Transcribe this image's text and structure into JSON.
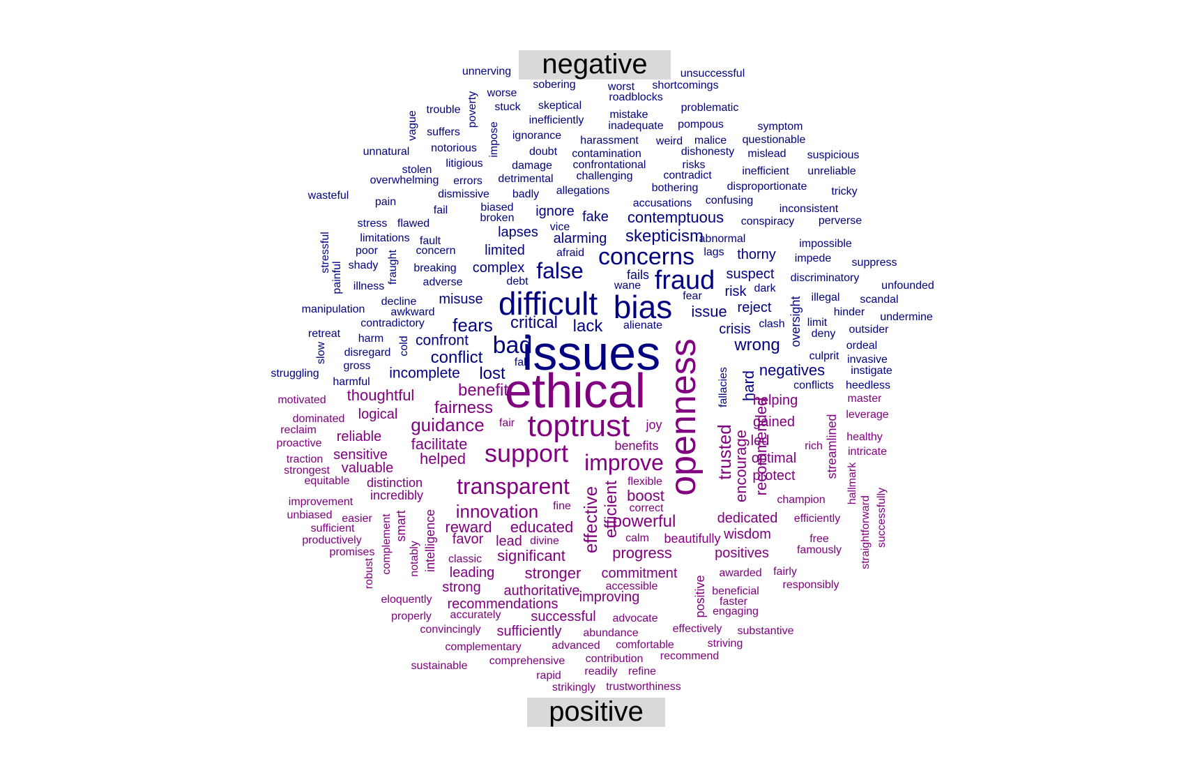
{
  "labels": {
    "negative": "negative",
    "positive": "positive"
  },
  "colors": {
    "negative": "#000080",
    "positive": "#800080"
  },
  "negative_words": [
    [
      "issues",
      70,
      848,
      506,
      0
    ],
    [
      "difficult",
      46,
      786,
      435,
      0
    ],
    [
      "bias",
      46,
      922,
      440,
      0
    ],
    [
      "fraud",
      38,
      982,
      402,
      0
    ],
    [
      "concerns",
      34,
      927,
      368,
      0
    ],
    [
      "false",
      32,
      803,
      388,
      0
    ],
    [
      "bad",
      34,
      735,
      495,
      0
    ],
    [
      "skepticism",
      24,
      953,
      339,
      0
    ],
    [
      "contemptuous",
      22,
      969,
      312,
      0
    ],
    [
      "fears",
      26,
      678,
      466,
      0
    ],
    [
      "critical",
      24,
      766,
      463,
      0
    ],
    [
      "lack",
      24,
      843,
      468,
      0
    ],
    [
      "conflict",
      24,
      655,
      513,
      0
    ],
    [
      "lost",
      24,
      706,
      536,
      0
    ],
    [
      "incomplete",
      21,
      609,
      535,
      0
    ],
    [
      "confront",
      21,
      634,
      488,
      0
    ],
    [
      "wrong",
      24,
      1086,
      495,
      0
    ],
    [
      "negatives",
      22,
      1136,
      531,
      0
    ],
    [
      "issue",
      22,
      1017,
      447,
      0
    ],
    [
      "crisis",
      20,
      1054,
      472,
      0
    ],
    [
      "reject",
      20,
      1082,
      441,
      0
    ],
    [
      "risk",
      20,
      1055,
      418,
      0
    ],
    [
      "suspect",
      20,
      1076,
      393,
      0
    ],
    [
      "thorny",
      20,
      1085,
      365,
      0
    ],
    [
      "limited",
      20,
      724,
      359,
      0
    ],
    [
      "complex",
      20,
      715,
      384,
      0
    ],
    [
      "misuse",
      20,
      661,
      429,
      0
    ],
    [
      "alarming",
      20,
      832,
      342,
      0
    ],
    [
      "lapses",
      20,
      743,
      333,
      0
    ],
    [
      "fake",
      20,
      854,
      311,
      0
    ],
    [
      "ignore",
      20,
      796,
      303,
      0
    ],
    [
      "fails",
      18,
      915,
      394,
      0
    ],
    [
      "wane",
      16,
      900,
      410,
      0
    ],
    [
      "fear",
      16,
      993,
      425,
      0
    ],
    [
      "alienate",
      16,
      922,
      467,
      0
    ],
    [
      "lags",
      16,
      1024,
      362,
      0
    ],
    [
      "abnormal",
      16,
      1036,
      343,
      0
    ],
    [
      "afraid",
      16,
      818,
      363,
      0
    ],
    [
      "vice",
      16,
      803,
      326,
      0
    ],
    [
      "debt",
      16,
      742,
      404,
      0
    ],
    [
      "adverse",
      16,
      635,
      405,
      0
    ],
    [
      "breaking",
      16,
      624,
      385,
      0
    ],
    [
      "concern",
      16,
      625,
      360,
      0
    ],
    [
      "fault",
      16,
      617,
      346,
      0
    ],
    [
      "flawed",
      16,
      593,
      321,
      0
    ],
    [
      "stress",
      16,
      534,
      321,
      0
    ],
    [
      "fail",
      16,
      632,
      302,
      0
    ],
    [
      "broken",
      16,
      713,
      313,
      0
    ],
    [
      "biased",
      16,
      713,
      298,
      0
    ],
    [
      "badly",
      16,
      754,
      279,
      0
    ],
    [
      "dismissive",
      16,
      665,
      279,
      0
    ],
    [
      "pain",
      16,
      553,
      290,
      0
    ],
    [
      "wasteful",
      16,
      471,
      281,
      0
    ],
    [
      "overwhelming",
      16,
      580,
      259,
      0
    ],
    [
      "errors",
      16,
      671,
      260,
      0
    ],
    [
      "detrimental",
      16,
      754,
      257,
      0
    ],
    [
      "allegations",
      16,
      836,
      274,
      0
    ],
    [
      "challenging",
      16,
      867,
      253,
      0
    ],
    [
      "confrontational",
      16,
      874,
      237,
      0
    ],
    [
      "risks",
      16,
      995,
      237,
      0
    ],
    [
      "contradict",
      16,
      986,
      252,
      0
    ],
    [
      "bothering",
      16,
      968,
      270,
      0
    ],
    [
      "disproportionate",
      16,
      1100,
      268,
      0
    ],
    [
      "accusations",
      16,
      950,
      292,
      0
    ],
    [
      "confusing",
      16,
      1046,
      288,
      0
    ],
    [
      "inefficient",
      16,
      1098,
      246,
      0
    ],
    [
      "unreliable",
      16,
      1193,
      246,
      0
    ],
    [
      "tricky",
      16,
      1211,
      275,
      0
    ],
    [
      "inconsistent",
      16,
      1160,
      300,
      0
    ],
    [
      "conspiracy",
      16,
      1101,
      318,
      0
    ],
    [
      "perverse",
      16,
      1205,
      317,
      0
    ],
    [
      "impossible",
      16,
      1184,
      350,
      0
    ],
    [
      "impede",
      16,
      1166,
      371,
      0
    ],
    [
      "suppress",
      16,
      1254,
      377,
      0
    ],
    [
      "discriminatory",
      16,
      1183,
      399,
      0
    ],
    [
      "unfounded",
      16,
      1302,
      410,
      0
    ],
    [
      "illegal",
      16,
      1184,
      427,
      0
    ],
    [
      "scandal",
      16,
      1261,
      430,
      0
    ],
    [
      "hinder",
      16,
      1218,
      448,
      0
    ],
    [
      "undermine",
      16,
      1300,
      455,
      0
    ],
    [
      "outsider",
      16,
      1246,
      473,
      0
    ],
    [
      "deny",
      16,
      1181,
      479,
      0
    ],
    [
      "limit",
      16,
      1172,
      463,
      0
    ],
    [
      "clash",
      16,
      1107,
      465,
      0
    ],
    [
      "dark",
      16,
      1097,
      414,
      0
    ],
    [
      "ordeal",
      16,
      1236,
      496,
      0
    ],
    [
      "culprit",
      16,
      1182,
      511,
      0
    ],
    [
      "invasive",
      16,
      1244,
      516,
      0
    ],
    [
      "instigate",
      16,
      1250,
      532,
      0
    ],
    [
      "conflicts",
      16,
      1167,
      553,
      0
    ],
    [
      "heedless",
      16,
      1245,
      553,
      0
    ],
    [
      "damage",
      16,
      763,
      238,
      0
    ],
    [
      "doubt",
      16,
      779,
      218,
      0
    ],
    [
      "contamination",
      16,
      870,
      221,
      0
    ],
    [
      "dishonesty",
      16,
      1015,
      218,
      0
    ],
    [
      "mislead",
      16,
      1100,
      221,
      0
    ],
    [
      "suspicious",
      16,
      1195,
      223,
      0
    ],
    [
      "questionable",
      16,
      1110,
      201,
      0
    ],
    [
      "malice",
      16,
      1019,
      202,
      0
    ],
    [
      "weird",
      16,
      960,
      203,
      0
    ],
    [
      "harassment",
      16,
      874,
      202,
      0
    ],
    [
      "ignorance",
      16,
      770,
      195,
      0
    ],
    [
      "inefficiently",
      16,
      798,
      173,
      0
    ],
    [
      "mistake",
      16,
      902,
      165,
      0
    ],
    [
      "inadequate",
      16,
      912,
      181,
      0
    ],
    [
      "pompous",
      16,
      1005,
      179,
      0
    ],
    [
      "symptom",
      16,
      1119,
      182,
      0
    ],
    [
      "problematic",
      16,
      1018,
      155,
      0
    ],
    [
      "skeptical",
      16,
      803,
      152,
      0
    ],
    [
      "stuck",
      16,
      728,
      154,
      0
    ],
    [
      "worse",
      16,
      720,
      134,
      0
    ],
    [
      "sobering",
      16,
      795,
      122,
      0
    ],
    [
      "worst",
      16,
      891,
      125,
      0
    ],
    [
      "shortcomings",
      16,
      983,
      123,
      0
    ],
    [
      "roadblocks",
      16,
      912,
      140,
      0
    ],
    [
      "unnerving",
      16,
      698,
      103,
      0
    ],
    [
      "unsuccessful",
      16,
      1022,
      106,
      0
    ],
    [
      "trouble",
      16,
      636,
      158,
      0
    ],
    [
      "suffers",
      16,
      636,
      190,
      0
    ],
    [
      "notorious",
      16,
      651,
      213,
      0
    ],
    [
      "unnatural",
      16,
      554,
      218,
      0
    ],
    [
      "litigious",
      16,
      666,
      235,
      0
    ],
    [
      "stolen",
      16,
      598,
      244,
      0
    ],
    [
      "limitations",
      16,
      552,
      342,
      0
    ],
    [
      "poor",
      16,
      526,
      360,
      0
    ],
    [
      "shady",
      16,
      521,
      381,
      0
    ],
    [
      "illness",
      16,
      529,
      411,
      0
    ],
    [
      "decline",
      16,
      572,
      433,
      0
    ],
    [
      "awkward",
      16,
      592,
      448,
      0
    ],
    [
      "contradictory",
      16,
      563,
      464,
      0
    ],
    [
      "manipulation",
      16,
      478,
      444,
      0
    ],
    [
      "retreat",
      16,
      465,
      479,
      0
    ],
    [
      "harm",
      16,
      532,
      486,
      0
    ],
    [
      "disregard",
      16,
      527,
      506,
      0
    ],
    [
      "gross",
      16,
      512,
      525,
      0
    ],
    [
      "struggling",
      16,
      423,
      536,
      0
    ],
    [
      "harmful",
      16,
      504,
      548,
      0
    ],
    [
      "fall",
      16,
      748,
      520,
      0
    ],
    [
      "poverty",
      16,
      678,
      157,
      1
    ],
    [
      "impose",
      16,
      709,
      200,
      1
    ],
    [
      "vague",
      16,
      592,
      180,
      1
    ],
    [
      "stressful",
      16,
      467,
      362,
      1
    ],
    [
      "painful",
      16,
      484,
      398,
      1
    ],
    [
      "fraught",
      16,
      564,
      383,
      1
    ],
    [
      "cold",
      16,
      580,
      496,
      1
    ],
    [
      "slow",
      16,
      461,
      506,
      1
    ],
    [
      "oversight",
      18,
      1141,
      461,
      1
    ],
    [
      "hard",
      22,
      1074,
      553,
      1
    ],
    [
      "fallacies",
      16,
      1038,
      555,
      1
    ]
  ],
  "positive_words": [
    [
      "ethical",
      70,
      825,
      560,
      0
    ],
    [
      "openness",
      52,
      980,
      598,
      1
    ],
    [
      "toptrust",
      44,
      830,
      611,
      0
    ],
    [
      "support",
      36,
      755,
      650,
      0
    ],
    [
      "transparent",
      32,
      736,
      697,
      0
    ],
    [
      "improve",
      32,
      895,
      663,
      0
    ],
    [
      "innovation",
      26,
      713,
      733,
      0
    ],
    [
      "guidance",
      26,
      642,
      609,
      0
    ],
    [
      "fairness",
      24,
      665,
      585,
      0
    ],
    [
      "benefit",
      24,
      693,
      560,
      0
    ],
    [
      "facilitate",
      22,
      630,
      637,
      0
    ],
    [
      "helped",
      22,
      635,
      658,
      0
    ],
    [
      "powerful",
      24,
      924,
      748,
      0
    ],
    [
      "progress",
      22,
      921,
      793,
      0
    ],
    [
      "educated",
      22,
      777,
      756,
      0
    ],
    [
      "reward",
      22,
      672,
      756,
      0
    ],
    [
      "significant",
      22,
      762,
      797,
      0
    ],
    [
      "stronger",
      22,
      793,
      822,
      0
    ],
    [
      "authoritative",
      20,
      777,
      847,
      0
    ],
    [
      "recommendations",
      20,
      721,
      866,
      0
    ],
    [
      "improving",
      20,
      874,
      856,
      0
    ],
    [
      "commitment",
      20,
      917,
      822,
      0
    ],
    [
      "successful",
      20,
      808,
      884,
      0
    ],
    [
      "sufficiently",
      20,
      759,
      905,
      0
    ],
    [
      "strong",
      20,
      662,
      842,
      0
    ],
    [
      "leading",
      20,
      677,
      821,
      0
    ],
    [
      "favor",
      20,
      671,
      773,
      0
    ],
    [
      "lead",
      20,
      730,
      776,
      0
    ],
    [
      "boost",
      22,
      926,
      711,
      0
    ],
    [
      "thoughtful",
      22,
      546,
      567,
      0
    ],
    [
      "logical",
      20,
      542,
      594,
      0
    ],
    [
      "reliable",
      20,
      515,
      626,
      0
    ],
    [
      "sensitive",
      20,
      517,
      652,
      0
    ],
    [
      "valuable",
      20,
      527,
      671,
      0
    ],
    [
      "distinction",
      18,
      566,
      692,
      0
    ],
    [
      "incredibly",
      18,
      569,
      710,
      0
    ],
    [
      "benefits",
      18,
      913,
      639,
      0
    ],
    [
      "joy",
      18,
      938,
      609,
      0
    ],
    [
      "fair",
      16,
      727,
      607,
      0
    ],
    [
      "flexible",
      16,
      925,
      691,
      0
    ],
    [
      "correct",
      16,
      927,
      729,
      0
    ],
    [
      "fine",
      16,
      806,
      726,
      0
    ],
    [
      "divine",
      16,
      781,
      776,
      0
    ],
    [
      "beautifully",
      18,
      993,
      772,
      0
    ],
    [
      "calm",
      16,
      914,
      772,
      0
    ],
    [
      "wisdom",
      20,
      1072,
      766,
      0
    ],
    [
      "positives",
      20,
      1064,
      793,
      0
    ],
    [
      "dedicated",
      20,
      1072,
      743,
      0
    ],
    [
      "efficiently",
      16,
      1172,
      744,
      0
    ],
    [
      "champion",
      16,
      1149,
      717,
      0
    ],
    [
      "protect",
      20,
      1110,
      682,
      0
    ],
    [
      "optimal",
      20,
      1110,
      657,
      0
    ],
    [
      "led",
      20,
      1090,
      632,
      0
    ],
    [
      "gained",
      20,
      1110,
      605,
      0
    ],
    [
      "helping",
      20,
      1112,
      574,
      0
    ],
    [
      "master",
      16,
      1240,
      572,
      0
    ],
    [
      "leverage",
      16,
      1244,
      595,
      0
    ],
    [
      "healthy",
      16,
      1240,
      627,
      0
    ],
    [
      "rich",
      16,
      1167,
      640,
      0
    ],
    [
      "intricate",
      16,
      1244,
      648,
      0
    ],
    [
      "free",
      16,
      1175,
      773,
      0
    ],
    [
      "famously",
      16,
      1175,
      789,
      0
    ],
    [
      "fairly",
      16,
      1126,
      820,
      0
    ],
    [
      "responsibly",
      16,
      1163,
      839,
      0
    ],
    [
      "awarded",
      16,
      1062,
      822,
      0
    ],
    [
      "beneficial",
      16,
      1055,
      848,
      0
    ],
    [
      "faster",
      16,
      1052,
      863,
      0
    ],
    [
      "engaging",
      16,
      1055,
      877,
      0
    ],
    [
      "substantive",
      16,
      1098,
      905,
      0
    ],
    [
      "effectively",
      16,
      1000,
      902,
      0
    ],
    [
      "striving",
      16,
      1040,
      923,
      0
    ],
    [
      "recommend",
      16,
      989,
      941,
      0
    ],
    [
      "contribution",
      16,
      881,
      945,
      0
    ],
    [
      "refine",
      16,
      921,
      963,
      0
    ],
    [
      "readily",
      16,
      862,
      963,
      0
    ],
    [
      "trustworthiness",
      16,
      923,
      985,
      0
    ],
    [
      "strikingly",
      16,
      823,
      986,
      0
    ],
    [
      "rapid",
      16,
      787,
      969,
      0
    ],
    [
      "comprehensive",
      16,
      756,
      948,
      0
    ],
    [
      "sustainable",
      16,
      630,
      955,
      0
    ],
    [
      "complementary",
      16,
      693,
      928,
      0
    ],
    [
      "advanced",
      16,
      826,
      926,
      0
    ],
    [
      "comfortable",
      16,
      925,
      925,
      0
    ],
    [
      "abundance",
      16,
      876,
      908,
      0
    ],
    [
      "advocate",
      16,
      911,
      887,
      0
    ],
    [
      "accessible",
      16,
      906,
      841,
      0
    ],
    [
      "convincingly",
      16,
      646,
      903,
      0
    ],
    [
      "accurately",
      16,
      682,
      882,
      0
    ],
    [
      "properly",
      16,
      590,
      884,
      0
    ],
    [
      "eloquently",
      16,
      583,
      860,
      0
    ],
    [
      "classic",
      16,
      667,
      802,
      0
    ],
    [
      "promises",
      16,
      505,
      792,
      0
    ],
    [
      "productively",
      16,
      476,
      775,
      0
    ],
    [
      "sufficient",
      16,
      477,
      758,
      0
    ],
    [
      "unbiased",
      16,
      444,
      739,
      0
    ],
    [
      "easier",
      16,
      512,
      744,
      0
    ],
    [
      "improvement",
      16,
      460,
      720,
      0
    ],
    [
      "equitable",
      16,
      469,
      690,
      0
    ],
    [
      "strongest",
      16,
      440,
      675,
      0
    ],
    [
      "traction",
      16,
      437,
      659,
      0
    ],
    [
      "proactive",
      16,
      429,
      636,
      0
    ],
    [
      "reclaim",
      16,
      428,
      617,
      0
    ],
    [
      "dominated",
      16,
      457,
      601,
      0
    ],
    [
      "motivated",
      16,
      433,
      574,
      0
    ],
    [
      "smart",
      18,
      575,
      754,
      1
    ],
    [
      "intelligence",
      18,
      617,
      775,
      1
    ],
    [
      "complement",
      16,
      555,
      780,
      1
    ],
    [
      "robust",
      16,
      530,
      822,
      1
    ],
    [
      "notably",
      16,
      595,
      801,
      1
    ],
    [
      "effective",
      26,
      847,
      745,
      1
    ],
    [
      "efficient",
      24,
      877,
      730,
      1
    ],
    [
      "positive",
      18,
      1004,
      855,
      1
    ],
    [
      "trusted",
      26,
      1039,
      648,
      1
    ],
    [
      "encourage",
      22,
      1063,
      668,
      1
    ],
    [
      "recommended",
      22,
      1092,
      640,
      1
    ],
    [
      "streamlined",
      18,
      1193,
      640,
      1
    ],
    [
      "hallmark",
      16,
      1223,
      693,
      1
    ],
    [
      "straightforward",
      16,
      1242,
      763,
      1
    ],
    [
      "successfully",
      16,
      1265,
      742,
      1
    ]
  ]
}
